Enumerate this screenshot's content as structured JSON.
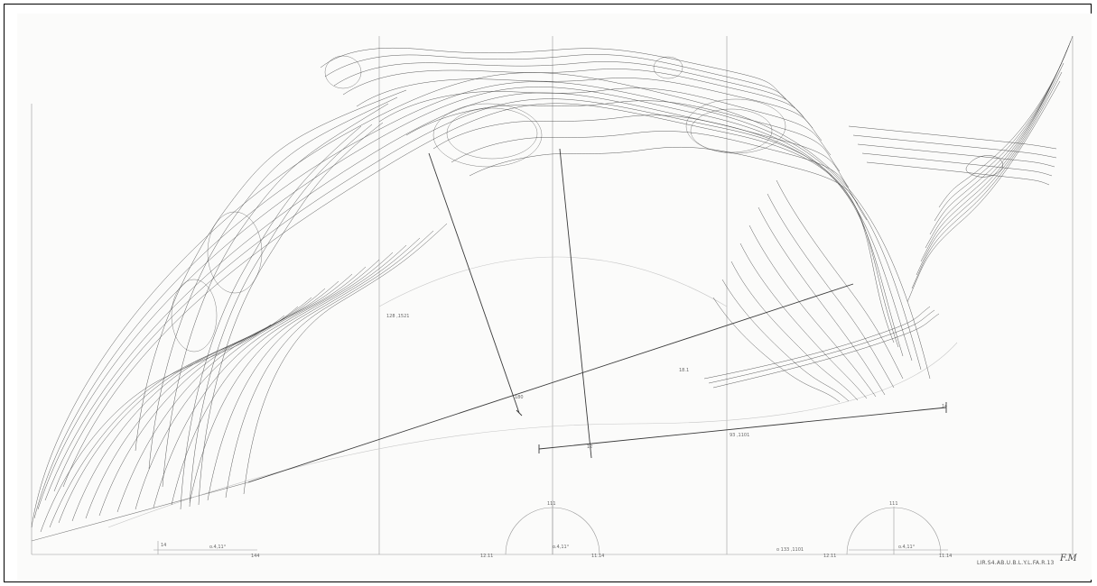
{
  "image": {
    "subject": "pencil-drawing",
    "medium_color": "#2b2b2b",
    "paper_color": "#fbfbfa",
    "border_color": "#000000"
  },
  "caption": {
    "text": "LIR.S4.AB.U.B.L.Y.L.FA.R.13",
    "signature": "F.M"
  }
}
